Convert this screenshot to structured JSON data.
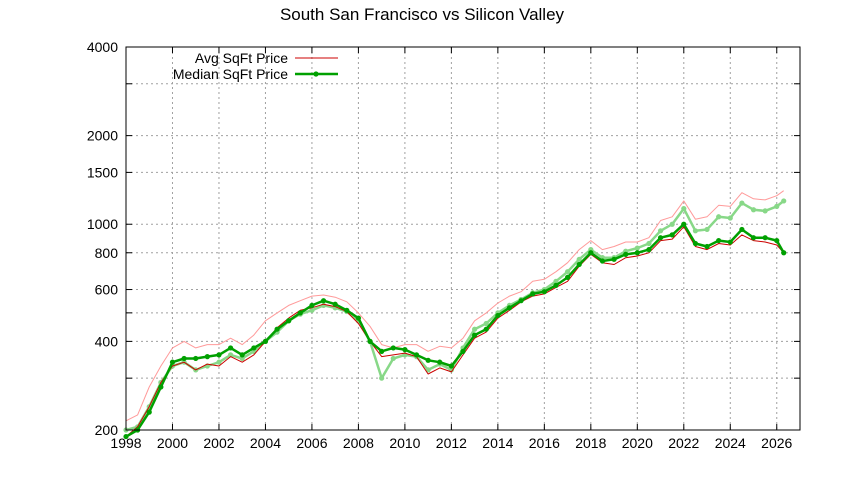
{
  "chart_data": {
    "type": "line",
    "title": "South San Francisco vs Silicon Valley",
    "xlabel": "",
    "ylabel": "",
    "xlim": [
      1998,
      2027
    ],
    "ylim": [
      200,
      4000
    ],
    "y_scale": "log",
    "grid": true,
    "legend_position": "top-left",
    "x_ticks": [
      1998,
      2000,
      2002,
      2004,
      2006,
      2008,
      2010,
      2012,
      2014,
      2016,
      2018,
      2020,
      2022,
      2024,
      2026
    ],
    "x_tick_labels": [
      "1998",
      "2000",
      "2002",
      "2004",
      "2006",
      "2008",
      "2010",
      "2012",
      "2014",
      "2016",
      "2018",
      "2020",
      "2022",
      "2024",
      "2026"
    ],
    "y_ticks": [
      200,
      400,
      600,
      800,
      1000,
      1500,
      2000,
      4000
    ],
    "y_tick_labels": [
      "200",
      "400",
      "600",
      "800",
      "1000",
      "1500",
      "2000",
      "4000"
    ],
    "y_minor_gridlines": [
      300,
      500,
      3000
    ],
    "series": [
      {
        "name": "Avg SqFt Price",
        "color": "#cc0000",
        "style": "thin-line",
        "x": [
          1998.0,
          1998.5,
          1999.0,
          1999.5,
          2000.0,
          2000.5,
          2001.0,
          2001.5,
          2002.0,
          2002.5,
          2003.0,
          2003.5,
          2004.0,
          2004.5,
          2005.0,
          2005.5,
          2006.0,
          2006.5,
          2007.0,
          2007.5,
          2008.0,
          2008.5,
          2009.0,
          2009.5,
          2010.0,
          2010.5,
          2011.0,
          2011.5,
          2012.0,
          2012.5,
          2013.0,
          2013.5,
          2014.0,
          2014.5,
          2015.0,
          2015.5,
          2016.0,
          2016.5,
          2017.0,
          2017.5,
          2018.0,
          2018.5,
          2019.0,
          2019.5,
          2020.0,
          2020.5,
          2021.0,
          2021.5,
          2022.0,
          2022.5,
          2023.0,
          2023.5,
          2024.0,
          2024.5,
          2025.0,
          2025.5,
          2026.0,
          2026.3
        ],
        "values": [
          190,
          205,
          240,
          290,
          330,
          340,
          320,
          335,
          330,
          355,
          340,
          360,
          400,
          445,
          480,
          510,
          520,
          535,
          525,
          505,
          460,
          400,
          355,
          360,
          365,
          355,
          310,
          325,
          315,
          360,
          410,
          430,
          480,
          510,
          545,
          570,
          580,
          610,
          640,
          720,
          790,
          740,
          730,
          770,
          780,
          800,
          880,
          890,
          980,
          840,
          820,
          860,
          850,
          920,
          880,
          870,
          850,
          800
        ]
      },
      {
        "name": "Median SqFt Price",
        "color": "#00a000",
        "style": "thick-line-with-points",
        "x": [
          1998.0,
          1998.5,
          1999.0,
          1999.5,
          2000.0,
          2000.5,
          2001.0,
          2001.5,
          2002.0,
          2002.5,
          2003.0,
          2003.5,
          2004.0,
          2004.5,
          2005.0,
          2005.5,
          2006.0,
          2006.5,
          2007.0,
          2007.5,
          2008.0,
          2008.5,
          2009.0,
          2009.5,
          2010.0,
          2010.5,
          2011.0,
          2011.5,
          2012.0,
          2012.5,
          2013.0,
          2013.5,
          2014.0,
          2014.5,
          2015.0,
          2015.5,
          2016.0,
          2016.5,
          2017.0,
          2017.5,
          2018.0,
          2018.5,
          2019.0,
          2019.5,
          2020.0,
          2020.5,
          2021.0,
          2021.5,
          2022.0,
          2022.5,
          2023.0,
          2023.5,
          2024.0,
          2024.5,
          2025.0,
          2025.5,
          2026.0,
          2026.3
        ],
        "values": [
          190,
          200,
          230,
          280,
          340,
          350,
          350,
          355,
          360,
          380,
          360,
          380,
          400,
          440,
          470,
          500,
          530,
          550,
          535,
          510,
          480,
          400,
          370,
          380,
          375,
          360,
          345,
          340,
          330,
          370,
          420,
          440,
          490,
          520,
          550,
          580,
          590,
          620,
          660,
          730,
          800,
          750,
          760,
          790,
          800,
          820,
          900,
          920,
          1000,
          860,
          840,
          880,
          870,
          960,
          900,
          900,
          880,
          800
        ]
      },
      {
        "name": "",
        "color": "#88d888",
        "style": "thick-line-with-points",
        "x": [
          1998.0,
          1998.5,
          1999.0,
          1999.5,
          2000.0,
          2000.5,
          2001.0,
          2001.5,
          2002.0,
          2002.5,
          2003.0,
          2003.5,
          2004.0,
          2004.5,
          2005.0,
          2005.5,
          2006.0,
          2006.5,
          2007.0,
          2007.5,
          2008.0,
          2008.5,
          2009.0,
          2009.5,
          2010.0,
          2010.5,
          2011.0,
          2011.5,
          2012.0,
          2012.5,
          2013.0,
          2013.5,
          2014.0,
          2014.5,
          2015.0,
          2015.5,
          2016.0,
          2016.5,
          2017.0,
          2017.5,
          2018.0,
          2018.5,
          2019.0,
          2019.5,
          2020.0,
          2020.5,
          2021.0,
          2021.5,
          2022.0,
          2022.5,
          2023.0,
          2023.5,
          2024.0,
          2024.5,
          2025.0,
          2025.5,
          2026.0,
          2026.3
        ],
        "values": [
          200,
          205,
          240,
          290,
          330,
          340,
          320,
          330,
          340,
          360,
          350,
          370,
          400,
          430,
          470,
          495,
          510,
          530,
          520,
          505,
          470,
          400,
          300,
          350,
          360,
          355,
          320,
          335,
          320,
          380,
          440,
          460,
          500,
          530,
          555,
          585,
          600,
          640,
          690,
          760,
          820,
          770,
          770,
          810,
          830,
          860,
          950,
          1000,
          1130,
          950,
          960,
          1060,
          1050,
          1180,
          1120,
          1110,
          1150,
          1200
        ]
      },
      {
        "name": "",
        "color": "#ff9a9a",
        "style": "thin-line",
        "x": [
          1998.0,
          1998.5,
          1999.0,
          1999.5,
          2000.0,
          2000.5,
          2001.0,
          2001.5,
          2002.0,
          2002.5,
          2003.0,
          2003.5,
          2004.0,
          2004.5,
          2005.0,
          2005.5,
          2006.0,
          2006.5,
          2007.0,
          2007.5,
          2008.0,
          2008.5,
          2009.0,
          2009.5,
          2010.0,
          2010.5,
          2011.0,
          2011.5,
          2012.0,
          2012.5,
          2013.0,
          2013.5,
          2014.0,
          2014.5,
          2015.0,
          2015.5,
          2016.0,
          2016.5,
          2017.0,
          2017.5,
          2018.0,
          2018.5,
          2019.0,
          2019.5,
          2020.0,
          2020.5,
          2021.0,
          2021.5,
          2022.0,
          2022.5,
          2023.0,
          2023.5,
          2024.0,
          2024.5,
          2025.0,
          2025.5,
          2026.0,
          2026.3
        ],
        "values": [
          215,
          225,
          280,
          330,
          380,
          400,
          380,
          390,
          390,
          410,
          390,
          420,
          470,
          500,
          530,
          550,
          570,
          575,
          565,
          545,
          500,
          450,
          390,
          380,
          390,
          390,
          370,
          385,
          380,
          410,
          470,
          500,
          540,
          570,
          590,
          640,
          650,
          690,
          740,
          820,
          880,
          820,
          840,
          870,
          870,
          900,
          1030,
          1060,
          1200,
          1040,
          1060,
          1160,
          1150,
          1280,
          1220,
          1210,
          1250,
          1300
        ]
      }
    ]
  }
}
